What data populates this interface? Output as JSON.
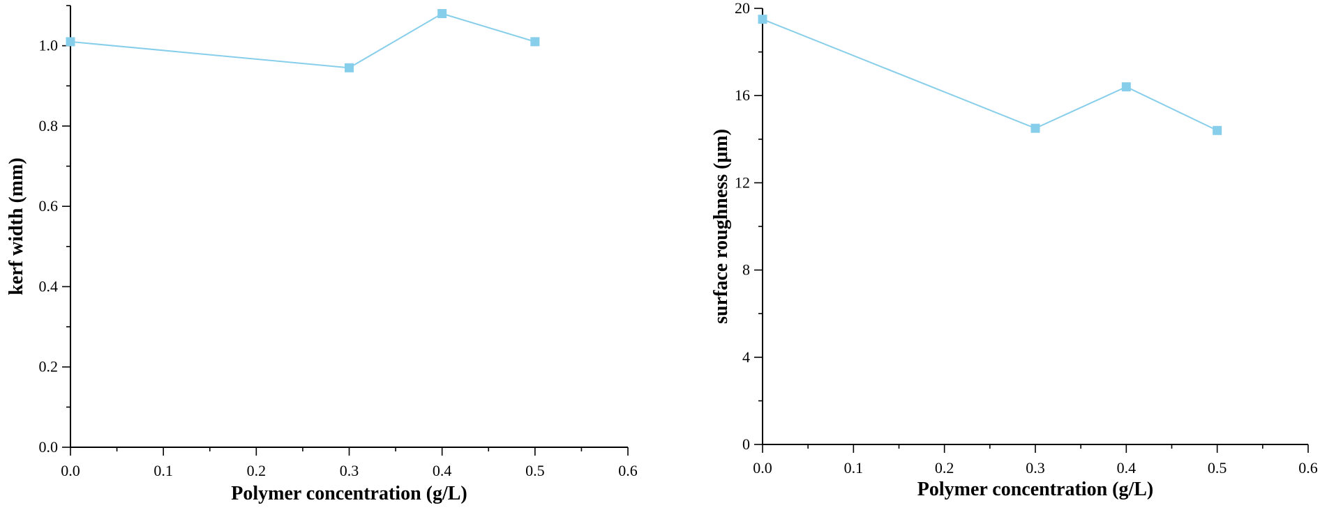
{
  "colors": {
    "series": "#87CEEB",
    "axis": "#000000",
    "background": "#ffffff"
  },
  "chart_data": [
    {
      "type": "line",
      "xlabel": "Polymer concentration (g/L)",
      "ylabel": "kerf width (mm)",
      "xlim": [
        0,
        0.6
      ],
      "ylim": [
        0,
        1.1
      ],
      "x_ticks": [
        0.0,
        0.1,
        0.2,
        0.3,
        0.4,
        0.5,
        0.6
      ],
      "x_tick_labels": [
        "0.0",
        "0.1",
        "0.2",
        "0.3",
        "0.4",
        "0.5",
        "0.6"
      ],
      "y_ticks": [
        0.0,
        0.2,
        0.4,
        0.6,
        0.8,
        1.0
      ],
      "y_tick_labels": [
        "0.0",
        "0.2",
        "0.4",
        "0.6",
        "0.8",
        "1.0"
      ],
      "y_minor_step": 0.1,
      "x_minor_step": 0.05,
      "series": [
        {
          "name": "kerf width",
          "marker": "square",
          "x": [
            0.0,
            0.3,
            0.4,
            0.5
          ],
          "y": [
            1.01,
            0.945,
            1.08,
            1.01
          ]
        }
      ]
    },
    {
      "type": "line",
      "xlabel": "Polymer concentration (g/L)",
      "ylabel": "surface roughness (μm)",
      "xlim": [
        0,
        0.6
      ],
      "ylim": [
        0,
        20
      ],
      "x_ticks": [
        0.0,
        0.1,
        0.2,
        0.3,
        0.4,
        0.5,
        0.6
      ],
      "x_tick_labels": [
        "0.0",
        "0.1",
        "0.2",
        "0.3",
        "0.4",
        "0.5",
        "0.6"
      ],
      "y_ticks": [
        0,
        4,
        8,
        12,
        16,
        20
      ],
      "y_tick_labels": [
        "0",
        "4",
        "8",
        "12",
        "16",
        "20"
      ],
      "y_minor_step": 2,
      "x_minor_step": 0.05,
      "series": [
        {
          "name": "surface roughness",
          "marker": "square",
          "x": [
            0.0,
            0.3,
            0.4,
            0.5
          ],
          "y": [
            19.5,
            14.5,
            16.4,
            14.4
          ]
        }
      ]
    }
  ]
}
